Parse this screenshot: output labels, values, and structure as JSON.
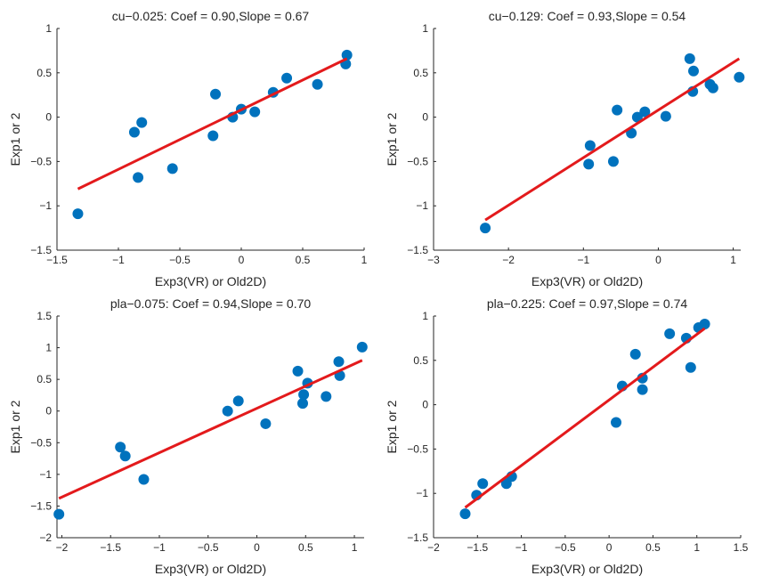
{
  "figure": {
    "background": "#ffffff"
  },
  "style": {
    "marker_color": "#0072BD",
    "fit_color": "#E31A1C",
    "axis_color": "#262626"
  },
  "chart_data": [
    {
      "type": "scatter",
      "title": "cu−0.025: Coef = 0.90,Slope = 0.67",
      "xlabel": "Exp3(VR) or Old2D)",
      "ylabel": "Exp1 or 2",
      "xlim": [
        -1.5,
        1.0
      ],
      "ylim": [
        -1.5,
        1.0
      ],
      "xticks": [
        -1.5,
        -1,
        -0.5,
        0,
        0.5,
        1
      ],
      "yticks": [
        -1.5,
        -1,
        -0.5,
        0,
        0.5,
        1
      ],
      "xtick_labels": [
        "−1.5",
        "−1",
        "−0.5",
        "0",
        "0.5",
        "1"
      ],
      "ytick_labels": [
        "−1.5",
        "−1",
        "−0.5",
        "0",
        "0.5",
        "1"
      ],
      "grid": false,
      "points": [
        [
          -1.33,
          -1.09
        ],
        [
          -0.87,
          -0.17
        ],
        [
          -0.84,
          -0.68
        ],
        [
          -0.81,
          -0.06
        ],
        [
          -0.56,
          -0.58
        ],
        [
          -0.23,
          -0.21
        ],
        [
          -0.21,
          0.26
        ],
        [
          -0.07,
          0.0
        ],
        [
          0.0,
          0.09
        ],
        [
          0.11,
          0.06
        ],
        [
          0.26,
          0.28
        ],
        [
          0.37,
          0.44
        ],
        [
          0.62,
          0.37
        ],
        [
          0.85,
          0.6
        ],
        [
          0.86,
          0.7
        ]
      ],
      "fit": {
        "x": [
          -1.33,
          0.86
        ],
        "y": [
          -0.81,
          0.66
        ]
      }
    },
    {
      "type": "scatter",
      "title": "cu−0.129: Coef = 0.93,Slope = 0.54",
      "xlabel": "Exp3(VR) or Old2D)",
      "ylabel": "Exp1 or 2",
      "xlim": [
        -3,
        1.1
      ],
      "ylim": [
        -1.5,
        1.0
      ],
      "xticks": [
        -3,
        -2,
        -1,
        0,
        1
      ],
      "yticks": [
        -1.5,
        -1,
        -0.5,
        0,
        0.5,
        1
      ],
      "xtick_labels": [
        "−3",
        "−2",
        "−1",
        "0",
        "1"
      ],
      "ytick_labels": [
        "−1.5",
        "−1",
        "−0.5",
        "0",
        "0.5",
        "1"
      ],
      "grid": false,
      "points": [
        [
          -2.31,
          -1.25
        ],
        [
          -0.93,
          -0.53
        ],
        [
          -0.91,
          -0.32
        ],
        [
          -0.6,
          -0.5
        ],
        [
          -0.55,
          0.08
        ],
        [
          -0.36,
          -0.18
        ],
        [
          -0.28,
          0.0
        ],
        [
          -0.18,
          0.06
        ],
        [
          0.1,
          0.01
        ],
        [
          0.42,
          0.66
        ],
        [
          0.46,
          0.29
        ],
        [
          0.47,
          0.52
        ],
        [
          0.69,
          0.37
        ],
        [
          0.73,
          0.33
        ],
        [
          1.08,
          0.45
        ]
      ],
      "fit": {
        "x": [
          -2.31,
          1.08
        ],
        "y": [
          -1.16,
          0.66
        ]
      }
    },
    {
      "type": "scatter",
      "title": "pla−0.075: Coef = 0.94,Slope = 0.70",
      "xlabel": "Exp3(VR) or Old2D)",
      "ylabel": "Exp1 or 2",
      "xlim": [
        -2.05,
        1.1
      ],
      "ylim": [
        -2.0,
        1.5
      ],
      "xticks": [
        -2,
        -1.5,
        -1,
        -0.5,
        0,
        0.5,
        1
      ],
      "yticks": [
        -2,
        -1.5,
        -1,
        -0.5,
        0,
        0.5,
        1,
        1.5
      ],
      "xtick_labels": [
        "−2",
        "−1.5",
        "−1",
        "−0.5",
        "0",
        "0.5",
        "1"
      ],
      "ytick_labels": [
        "−2",
        "−1.5",
        "−1",
        "−0.5",
        "0",
        "0.5",
        "1",
        "1.5"
      ],
      "grid": false,
      "points": [
        [
          -2.03,
          -1.63
        ],
        [
          -1.4,
          -0.57
        ],
        [
          -1.35,
          -0.71
        ],
        [
          -1.16,
          -1.08
        ],
        [
          -0.3,
          0.0
        ],
        [
          -0.19,
          0.16
        ],
        [
          0.09,
          -0.2
        ],
        [
          0.42,
          0.63
        ],
        [
          0.47,
          0.12
        ],
        [
          0.48,
          0.26
        ],
        [
          0.52,
          0.44
        ],
        [
          0.71,
          0.23
        ],
        [
          0.84,
          0.78
        ],
        [
          0.85,
          0.56
        ],
        [
          1.08,
          1.01
        ]
      ],
      "fit": {
        "x": [
          -2.03,
          1.08
        ],
        "y": [
          -1.38,
          0.8
        ]
      }
    },
    {
      "type": "scatter",
      "title": "pla−0.225: Coef = 0.97,Slope = 0.74",
      "xlabel": "Exp3(VR) or Old2D)",
      "ylabel": "Exp1 or 2",
      "xlim": [
        -2,
        1.5
      ],
      "ylim": [
        -1.5,
        1.0
      ],
      "xticks": [
        -2,
        -1.5,
        -1,
        -0.5,
        0,
        0.5,
        1,
        1.5
      ],
      "yticks": [
        -1.5,
        -1,
        -0.5,
        0,
        0.5,
        1
      ],
      "xtick_labels": [
        "−2",
        "−1.5",
        "−1",
        "−0.5",
        "0",
        "0.5",
        "1",
        "1.5"
      ],
      "ytick_labels": [
        "−1.5",
        "−1",
        "−0.5",
        "0",
        "0.5",
        "1"
      ],
      "grid": false,
      "points": [
        [
          -1.64,
          -1.23
        ],
        [
          -1.51,
          -1.02
        ],
        [
          -1.44,
          -0.89
        ],
        [
          -1.17,
          -0.89
        ],
        [
          -1.11,
          -0.81
        ],
        [
          0.08,
          -0.2
        ],
        [
          0.15,
          0.21
        ],
        [
          0.3,
          0.57
        ],
        [
          0.38,
          0.3
        ],
        [
          0.38,
          0.17
        ],
        [
          0.69,
          0.8
        ],
        [
          0.88,
          0.75
        ],
        [
          0.93,
          0.42
        ],
        [
          1.02,
          0.87
        ],
        [
          1.09,
          0.91
        ]
      ],
      "fit": {
        "x": [
          -1.64,
          1.09
        ],
        "y": [
          -1.16,
          0.86
        ]
      }
    }
  ]
}
